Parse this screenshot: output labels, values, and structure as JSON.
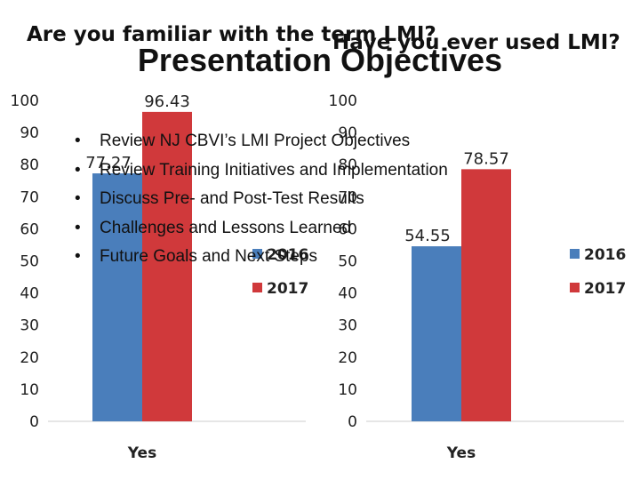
{
  "slide": {
    "title": "Presentation Objectives",
    "bullets": [
      "Review NJ CBVI’s LMI Project Objectives",
      "Review Training Initiatives and Implementation",
      "Discuss Pre- and Post-Test Results",
      "Challenges and Lessons Learned",
      "Future Goals and Next Steps"
    ]
  },
  "chart_data": [
    {
      "type": "bar",
      "title": "Are you familiar with the term LMI?",
      "categories": [
        "Yes"
      ],
      "series": [
        {
          "name": "2016",
          "values": [
            77.27
          ],
          "color": "#4a7ebb"
        },
        {
          "name": "2017",
          "values": [
            96.43
          ],
          "color": "#d0393b"
        }
      ],
      "ylim": [
        0,
        100
      ],
      "yticks": [
        0,
        10,
        20,
        30,
        40,
        50,
        60,
        70,
        80,
        90,
        100
      ],
      "data_labels": [
        "77.27",
        "96.43"
      ],
      "legend": "right"
    },
    {
      "type": "bar",
      "title": "Have you ever used LMI?",
      "categories": [
        "Yes"
      ],
      "series": [
        {
          "name": "2016",
          "values": [
            54.55
          ],
          "color": "#4a7ebb"
        },
        {
          "name": "2017",
          "values": [
            78.57
          ],
          "color": "#d0393b"
        }
      ],
      "ylim": [
        0,
        100
      ],
      "yticks": [
        0,
        10,
        20,
        30,
        40,
        50,
        60,
        70,
        80,
        90,
        100
      ],
      "data_labels": [
        "54.55",
        "78.57"
      ],
      "legend": "right"
    }
  ]
}
